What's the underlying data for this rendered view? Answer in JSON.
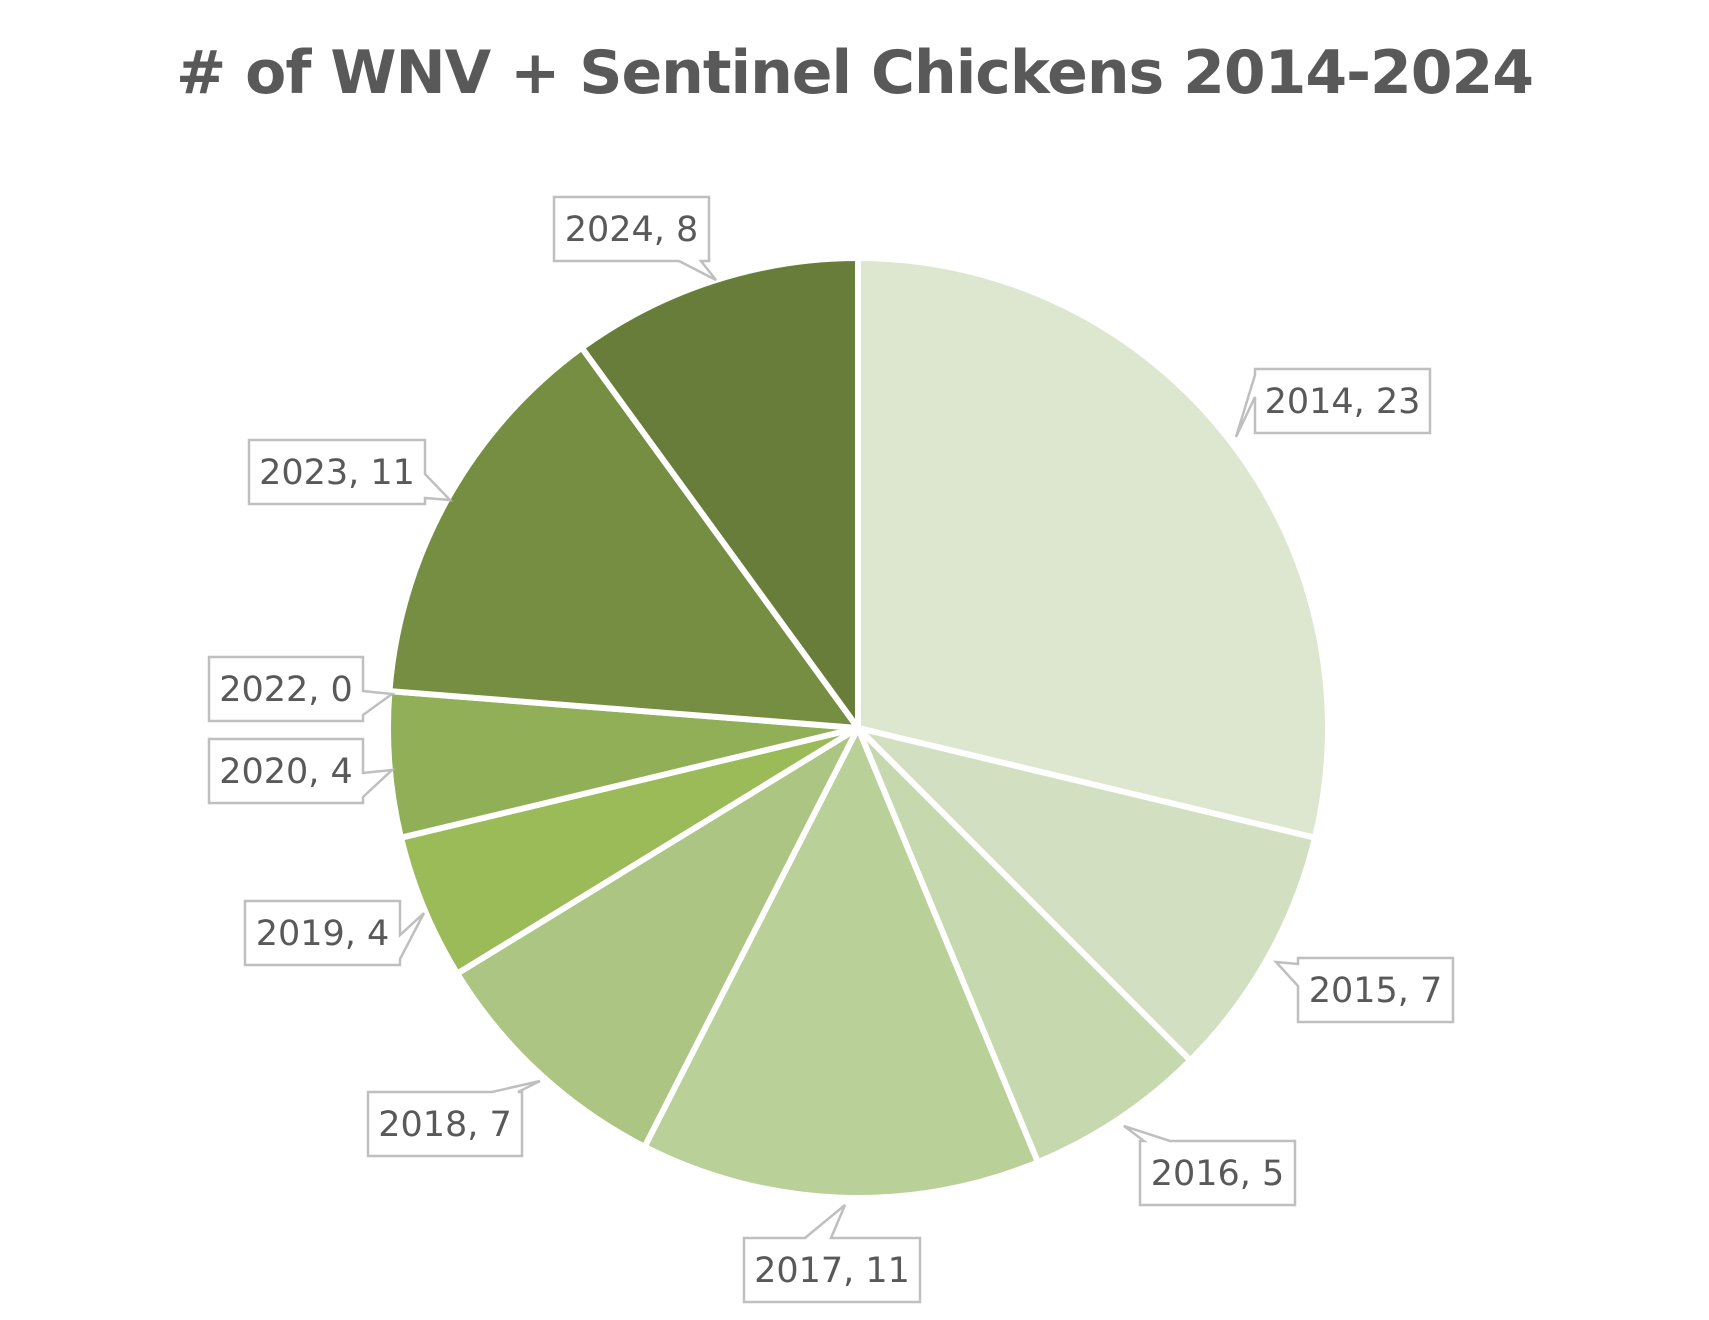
{
  "chart_data": {
    "type": "pie",
    "title": "# of WNV + Sentinel Chickens 2014-2024",
    "categories": [
      "2014",
      "2015",
      "2016",
      "2017",
      "2018",
      "2019",
      "2020",
      "2022",
      "2023",
      "2024"
    ],
    "values": [
      23,
      7,
      5,
      11,
      7,
      4,
      4,
      0,
      11,
      8
    ],
    "labels": [
      "2014, 23",
      "2015, 7",
      "2016, 5",
      "2017, 11",
      "2018, 7",
      "2019, 4",
      "2020, 4",
      "2022, 0",
      "2023, 11",
      "2024, 8"
    ],
    "colors": [
      "#dde7cf",
      "#d2dfc0",
      "#c6d8ad",
      "#bad099",
      "#adc583",
      "#9bba58",
      "#90af57",
      "#84a24b",
      "#768e42",
      "#697d3a"
    ],
    "legend": "none",
    "start_angle": "12 o'clock",
    "direction": "clockwise"
  }
}
